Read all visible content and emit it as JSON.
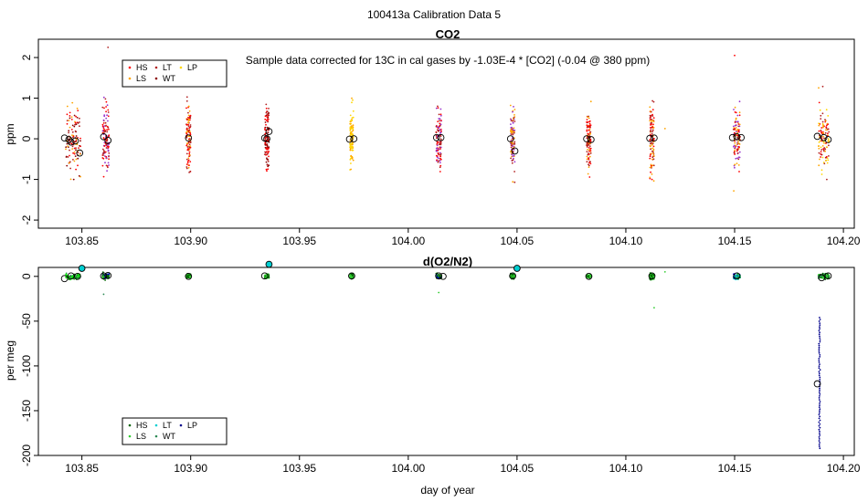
{
  "page_title": "100413a   Calibration Data 5",
  "chart_data": [
    {
      "type": "scatter",
      "title": "CO2",
      "ylabel": "ppm",
      "xlabel": "",
      "annotation": "Sample data corrected for 13C in cal gases by -1.03E-4 * [CO2] (-0.04 @ 380 ppm)",
      "xlim": [
        103.83,
        104.205
      ],
      "ylim": [
        -2.2,
        2.45
      ],
      "x_ticks": [
        "103.85",
        "103.90",
        "103.95",
        "104.00",
        "104.05",
        "104.10",
        "104.15",
        "104.20"
      ],
      "y_ticks": [
        "-2",
        "-1",
        "0",
        "1",
        "2"
      ],
      "legend_position": "top-left",
      "legend": [
        {
          "name": "HS",
          "color": "#ff0000"
        },
        {
          "name": "LS",
          "color": "#ffa500"
        },
        {
          "name": "LT",
          "color": "#b22222"
        },
        {
          "name": "WT",
          "color": "#8b0000"
        },
        {
          "name": "LP",
          "color": "#ffd700"
        }
      ],
      "clusters": [
        {
          "x": 103.846,
          "spread": 0.0035,
          "sd": 0.75,
          "colors": [
            "#ff0000",
            "#ffa500",
            "#b22222",
            "#8b0000"
          ]
        },
        {
          "x": 103.861,
          "spread": 0.0015,
          "sd": 0.7,
          "colors": [
            "#ff0000",
            "#b22222",
            "#9932cc"
          ]
        },
        {
          "x": 103.899,
          "spread": 0.001,
          "sd": 0.7,
          "colors": [
            "#ffa500",
            "#ff0000",
            "#b22222"
          ]
        },
        {
          "x": 103.935,
          "spread": 0.001,
          "sd": 0.75,
          "colors": [
            "#ff0000",
            "#b22222",
            "#8b0000"
          ]
        },
        {
          "x": 103.974,
          "spread": 0.0008,
          "sd": 0.65,
          "colors": [
            "#ffa500",
            "#ffd700"
          ]
        },
        {
          "x": 104.014,
          "spread": 0.0012,
          "sd": 0.7,
          "colors": [
            "#ff0000",
            "#b22222",
            "#9932cc"
          ]
        },
        {
          "x": 104.048,
          "spread": 0.001,
          "sd": 0.7,
          "colors": [
            "#ffa500",
            "#b22222",
            "#9932cc"
          ]
        },
        {
          "x": 104.083,
          "spread": 0.001,
          "sd": 0.7,
          "colors": [
            "#ff0000",
            "#ffa500",
            "#b22222"
          ]
        },
        {
          "x": 104.112,
          "spread": 0.001,
          "sd": 0.75,
          "colors": [
            "#ffa500",
            "#ff0000",
            "#b22222"
          ]
        },
        {
          "x": 104.151,
          "spread": 0.0015,
          "sd": 0.7,
          "colors": [
            "#ff0000",
            "#ffa500",
            "#9932cc",
            "#b22222"
          ]
        },
        {
          "x": 104.191,
          "spread": 0.0025,
          "sd": 0.7,
          "colors": [
            "#ffd700",
            "#ff0000",
            "#ffa500",
            "#b22222"
          ]
        }
      ],
      "means": [
        {
          "x": 103.842,
          "y": 0.02
        },
        {
          "x": 103.844,
          "y": -0.02
        },
        {
          "x": 103.845,
          "y": -0.08
        },
        {
          "x": 103.847,
          "y": -0.05
        },
        {
          "x": 103.849,
          "y": -0.35
        },
        {
          "x": 103.86,
          "y": 0.05
        },
        {
          "x": 103.862,
          "y": -0.04
        },
        {
          "x": 103.899,
          "y": 0.02
        },
        {
          "x": 103.934,
          "y": 0.02
        },
        {
          "x": 103.935,
          "y": 0.0
        },
        {
          "x": 103.936,
          "y": 0.18
        },
        {
          "x": 103.973,
          "y": -0.01
        },
        {
          "x": 103.975,
          "y": 0.0
        },
        {
          "x": 104.013,
          "y": 0.03
        },
        {
          "x": 104.015,
          "y": 0.03
        },
        {
          "x": 104.047,
          "y": 0.0
        },
        {
          "x": 104.049,
          "y": -0.3
        },
        {
          "x": 104.082,
          "y": 0.0
        },
        {
          "x": 104.084,
          "y": -0.02
        },
        {
          "x": 104.111,
          "y": 0.01
        },
        {
          "x": 104.113,
          "y": 0.02
        },
        {
          "x": 104.149,
          "y": 0.03
        },
        {
          "x": 104.151,
          "y": 0.05
        },
        {
          "x": 104.153,
          "y": 0.03
        },
        {
          "x": 104.188,
          "y": 0.06
        },
        {
          "x": 104.191,
          "y": 0.03
        },
        {
          "x": 104.193,
          "y": -0.02
        }
      ],
      "outliers": [
        {
          "x": 103.862,
          "y": 2.25,
          "color": "#b22222"
        },
        {
          "x": 104.15,
          "y": 2.05,
          "color": "#ff0000"
        },
        {
          "x": 104.118,
          "y": 0.25,
          "color": "#ffa500"
        }
      ]
    },
    {
      "type": "scatter",
      "title": "d(O2/N2)",
      "ylabel": "per meg",
      "xlabel": "day of year",
      "xlim": [
        103.83,
        104.205
      ],
      "ylim": [
        -200,
        10
      ],
      "x_ticks": [
        "103.85",
        "103.90",
        "103.95",
        "104.00",
        "104.05",
        "104.10",
        "104.15",
        "104.20"
      ],
      "y_ticks": [
        "-200",
        "-150",
        "-100",
        "-50",
        "0"
      ],
      "legend_position": "bottom-left",
      "legend": [
        {
          "name": "HS",
          "color": "#006400"
        },
        {
          "name": "LS",
          "color": "#32cd32"
        },
        {
          "name": "LT",
          "color": "#00ced1"
        },
        {
          "name": "WT",
          "color": "#2e8b57"
        },
        {
          "name": "LP",
          "color": "#00008b"
        }
      ],
      "clusters": [
        {
          "x": 103.846,
          "spread": 0.0035,
          "sd": 2.5,
          "colors": [
            "#32cd32",
            "#006400",
            "#2e8b57",
            "#00ff00"
          ]
        },
        {
          "x": 103.861,
          "spread": 0.0015,
          "sd": 2.5,
          "colors": [
            "#32cd32",
            "#006400",
            "#0000cd"
          ]
        },
        {
          "x": 103.899,
          "spread": 0.001,
          "sd": 2.0,
          "colors": [
            "#32cd32",
            "#006400"
          ]
        },
        {
          "x": 103.935,
          "spread": 0.001,
          "sd": 2.0,
          "colors": [
            "#32cd32",
            "#006400"
          ]
        },
        {
          "x": 103.974,
          "spread": 0.0008,
          "sd": 2.0,
          "colors": [
            "#32cd32",
            "#006400"
          ]
        },
        {
          "x": 104.014,
          "spread": 0.0012,
          "sd": 2.5,
          "colors": [
            "#32cd32",
            "#006400",
            "#0000cd"
          ]
        },
        {
          "x": 104.048,
          "spread": 0.001,
          "sd": 2.0,
          "colors": [
            "#32cd32",
            "#006400"
          ]
        },
        {
          "x": 104.083,
          "spread": 0.001,
          "sd": 1.5,
          "colors": [
            "#32cd32",
            "#006400"
          ]
        },
        {
          "x": 104.112,
          "spread": 0.001,
          "sd": 2.5,
          "colors": [
            "#32cd32",
            "#006400"
          ]
        },
        {
          "x": 104.151,
          "spread": 0.0015,
          "sd": 2.5,
          "colors": [
            "#32cd32",
            "#006400",
            "#0000cd",
            "#00ced1"
          ]
        },
        {
          "x": 104.191,
          "spread": 0.0025,
          "sd": 2.5,
          "colors": [
            "#32cd32",
            "#006400",
            "#2e8b57"
          ]
        }
      ],
      "column": {
        "x": 104.189,
        "y_from": -192,
        "y_to": -46,
        "color": "#00008b"
      },
      "means": [
        {
          "x": 103.842,
          "y": -2.5
        },
        {
          "x": 103.845,
          "y": 0.5
        },
        {
          "x": 103.848,
          "y": 0.0
        },
        {
          "x": 103.86,
          "y": 0.5
        },
        {
          "x": 103.862,
          "y": 1.0
        },
        {
          "x": 103.899,
          "y": 0.0
        },
        {
          "x": 103.934,
          "y": 0.5
        },
        {
          "x": 103.974,
          "y": 0.5
        },
        {
          "x": 104.014,
          "y": 0.5
        },
        {
          "x": 104.016,
          "y": 0.0
        },
        {
          "x": 104.048,
          "y": 0.5
        },
        {
          "x": 104.083,
          "y": 0.0
        },
        {
          "x": 104.112,
          "y": 0.5
        },
        {
          "x": 104.151,
          "y": 0.5
        },
        {
          "x": 104.19,
          "y": -1.5
        },
        {
          "x": 104.193,
          "y": 0.5
        },
        {
          "x": 104.188,
          "y": -120
        }
      ],
      "filled_means": [
        {
          "x": 103.85,
          "y": 9.0,
          "color": "#00ced1"
        },
        {
          "x": 103.936,
          "y": 13.5,
          "color": "#00ced1"
        },
        {
          "x": 104.05,
          "y": 9.0,
          "color": "#00ced1"
        }
      ],
      "outliers": [
        {
          "x": 103.86,
          "y": -20,
          "color": "#2e8b57"
        },
        {
          "x": 104.113,
          "y": -35,
          "color": "#32cd32"
        },
        {
          "x": 104.014,
          "y": -18,
          "color": "#32cd32"
        },
        {
          "x": 104.118,
          "y": 5,
          "color": "#32cd32"
        }
      ]
    }
  ]
}
